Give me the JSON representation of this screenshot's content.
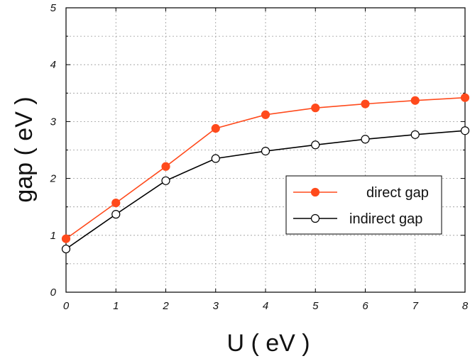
{
  "chart_data": {
    "type": "line",
    "title": "",
    "xlabel": "U ( eV )",
    "ylabel": "gap  ( eV )",
    "xlim": [
      0,
      8
    ],
    "ylim": [
      0,
      5
    ],
    "xticks": [
      "0",
      "1",
      "2",
      "3",
      "4",
      "5",
      "6",
      "7",
      "8"
    ],
    "yticks": [
      "0",
      "1",
      "2",
      "3",
      "4",
      "5"
    ],
    "grid": true,
    "legend_position": "right-middle",
    "x": [
      0,
      1,
      2,
      3,
      4,
      5,
      6,
      7,
      8
    ],
    "series": [
      {
        "name": "direct gap",
        "values": [
          0.94,
          1.57,
          2.21,
          2.88,
          3.12,
          3.24,
          3.31,
          3.37,
          3.42
        ],
        "color": "#ff4a1c",
        "marker": "filled-circle"
      },
      {
        "name": "indirect gap",
        "values": [
          0.76,
          1.37,
          1.96,
          2.35,
          2.48,
          2.59,
          2.69,
          2.77,
          2.84
        ],
        "color": "#000000",
        "marker": "open-circle"
      }
    ]
  }
}
